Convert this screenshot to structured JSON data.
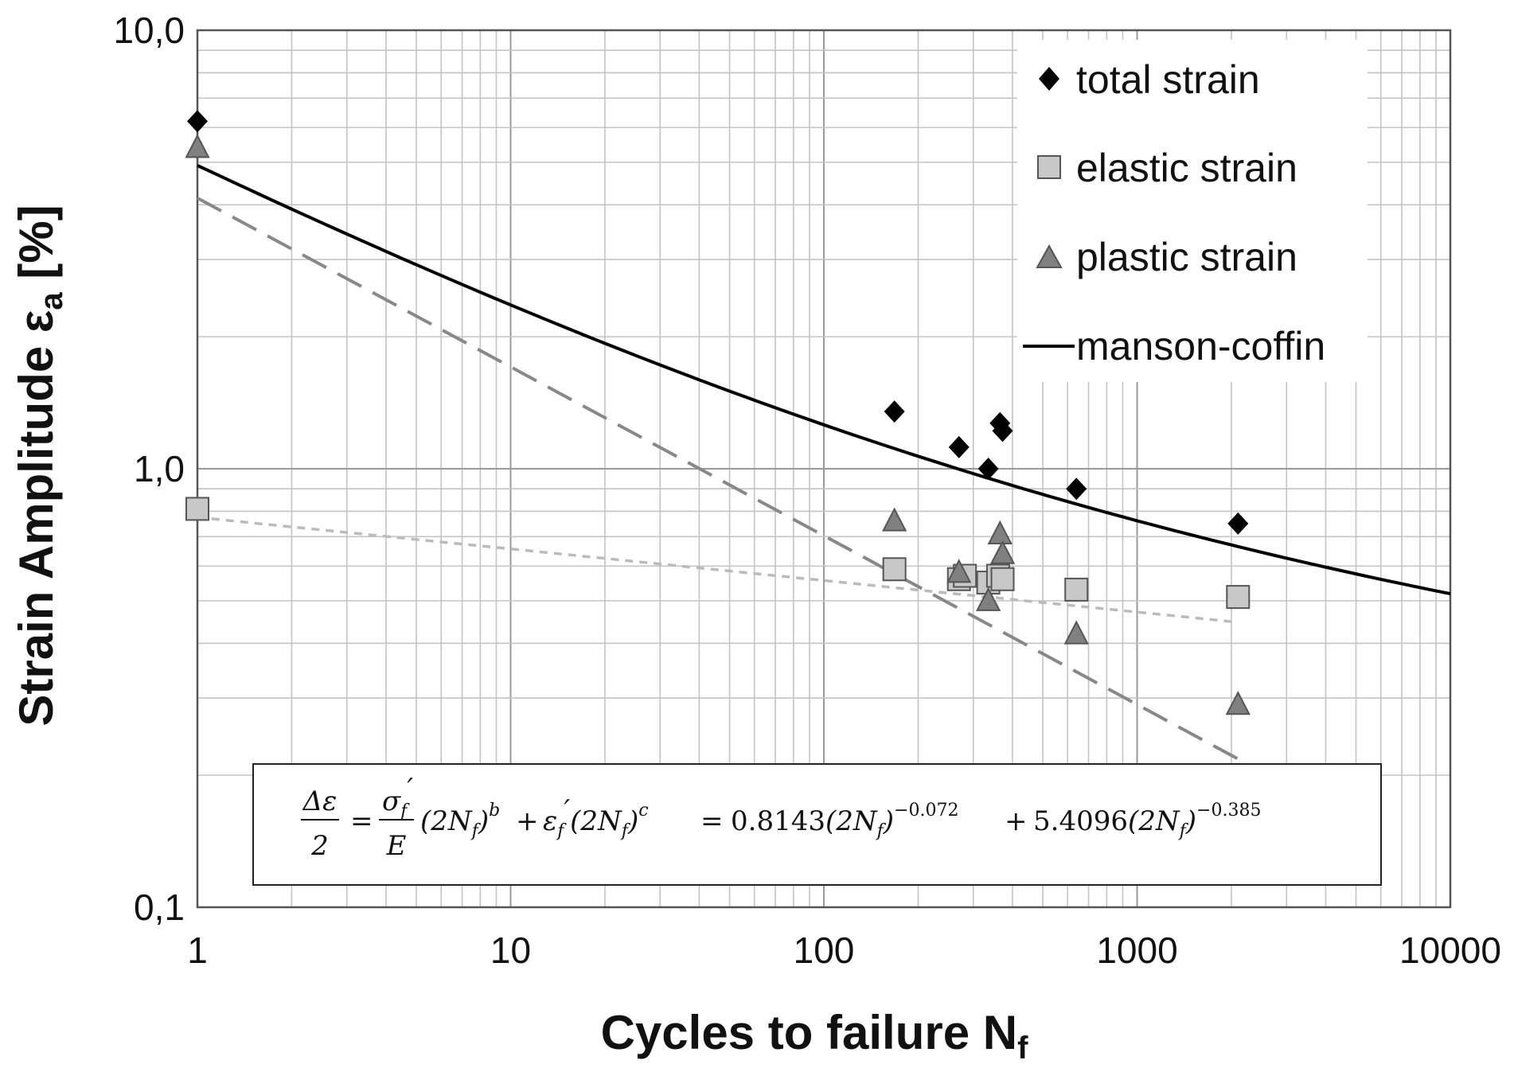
{
  "chart_data": {
    "type": "scatter",
    "x_scale": "log",
    "y_scale": "log",
    "xlim": [
      1,
      10000
    ],
    "ylim": [
      0.1,
      10
    ],
    "grid": true,
    "legend_position": "top-right",
    "xlabel_main": "Cycles to failure N",
    "xlabel_sub": "f",
    "ylabel_main": "Strain Amplitude ε",
    "ylabel_sub": "a",
    "ylabel_unit": " [%]",
    "x_ticks": [
      {
        "value": 1,
        "label": "1"
      },
      {
        "value": 10,
        "label": "10"
      },
      {
        "value": 100,
        "label": "100"
      },
      {
        "value": 1000,
        "label": "1000"
      },
      {
        "value": 10000,
        "label": "10000"
      }
    ],
    "y_ticks": [
      {
        "value": 0.1,
        "label": "0,1"
      },
      {
        "value": 1,
        "label": "1,0"
      },
      {
        "value": 10,
        "label": "10,0"
      }
    ],
    "series": [
      {
        "name": "total strain",
        "marker": "diamond",
        "color": "#000000",
        "points": [
          [
            1,
            6.2
          ],
          [
            168,
            1.35
          ],
          [
            270,
            1.12
          ],
          [
            335,
            1.0
          ],
          [
            365,
            1.27
          ],
          [
            372,
            1.22
          ],
          [
            640,
            0.9
          ],
          [
            2100,
            0.75
          ]
        ]
      },
      {
        "name": "elastic strain",
        "marker": "square",
        "color": "#c8c8c8",
        "points": [
          [
            1,
            0.81
          ],
          [
            168,
            0.59
          ],
          [
            270,
            0.56
          ],
          [
            282,
            0.57
          ],
          [
            335,
            0.55
          ],
          [
            360,
            0.57
          ],
          [
            372,
            0.56
          ],
          [
            640,
            0.53
          ],
          [
            2100,
            0.51
          ]
        ]
      },
      {
        "name": "plastic strain",
        "marker": "triangle",
        "color": "#808080",
        "points": [
          [
            1,
            5.4
          ],
          [
            168,
            0.76
          ],
          [
            270,
            0.58
          ],
          [
            335,
            0.5
          ],
          [
            365,
            0.71
          ],
          [
            372,
            0.64
          ],
          [
            640,
            0.42
          ],
          [
            2100,
            0.29
          ]
        ]
      },
      {
        "name": "manson-coffin",
        "marker": "line",
        "color": "#000000",
        "formula": {
          "a": 0.8143,
          "b": -0.072,
          "c_coef": 5.4096,
          "c": -0.385
        }
      }
    ],
    "fit_lines": [
      {
        "series": "plastic strain",
        "style": "dashed",
        "color": "#888888",
        "coef": 5.4096,
        "exp": -0.385,
        "x_range": [
          1,
          2100
        ]
      },
      {
        "series": "elastic strain",
        "style": "dotted",
        "color": "#bbbbbb",
        "coef": 0.8143,
        "exp": -0.072,
        "x_range": [
          1,
          2100
        ]
      }
    ],
    "equation": {
      "delta_eps": "Δε",
      "two": "2",
      "sigma": "σ",
      "f_sub": "f",
      "prime": "′",
      "E": "E",
      "two_N": "2N",
      "b": "b",
      "eps": "ε",
      "c": "c",
      "coef1": "0.8143",
      "exp1": "−0.072",
      "coef2": "5.4096",
      "exp2": "−0.385",
      "eq": "=",
      "plus": "+"
    }
  }
}
